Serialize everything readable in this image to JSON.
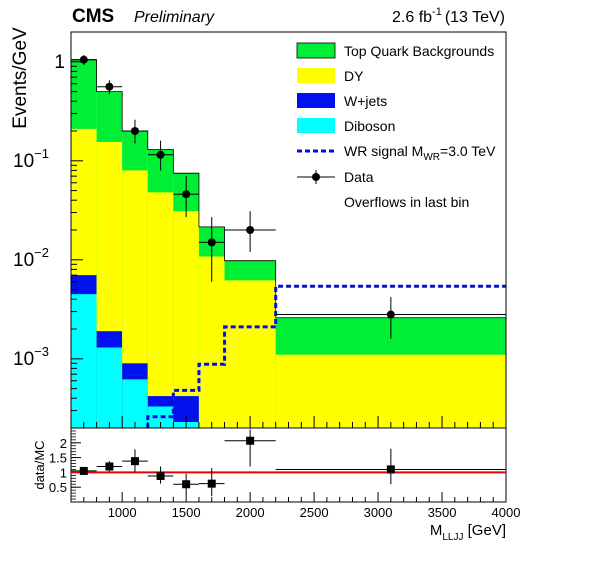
{
  "header": {
    "experiment": "CMS",
    "status": "Preliminary",
    "lumi_value": "2.6 fb",
    "lumi_exp": "-1",
    "energy": "(13 TeV)"
  },
  "legend": {
    "top": "Top Quark Backgrounds",
    "dy": "DY",
    "wjets": "W+jets",
    "diboson": "Diboson",
    "signal_main": "WR signal M",
    "signal_sub": "WR",
    "signal_val": "=3.0 TeV",
    "data": "Data",
    "note": "Overflows in last bin"
  },
  "colors": {
    "top": "#00ee33",
    "dy": "#ffff00",
    "wjets": "#0011ee",
    "diboson": "#00ffff",
    "signal": "#0011dd",
    "ratio_line": "#ee0000"
  },
  "chart_data": [
    {
      "type": "bar",
      "title": "",
      "xlabel_main": "M",
      "xlabel_sub": "LLJJ",
      "xlabel_unit": " [GeV]",
      "ylabel": "Events/GeV",
      "xlim": [
        600,
        4000
      ],
      "ylim": [
        0.0002,
        2
      ],
      "yscale": "log",
      "yticks": [
        {
          "v": 1,
          "base": "1",
          "exp": ""
        },
        {
          "v": 0.1,
          "base": "10",
          "exp": "−1"
        },
        {
          "v": 0.01,
          "base": "10",
          "exp": "−2"
        },
        {
          "v": 0.001,
          "base": "10",
          "exp": "−3"
        }
      ],
      "bins": [
        {
          "lo": 600,
          "hi": 800,
          "diboson": 0.0045,
          "wjets": 0.007,
          "dy": 0.21,
          "total": 1.05
        },
        {
          "lo": 800,
          "hi": 1000,
          "diboson": 0.0013,
          "wjets": 0.0019,
          "dy": 0.155,
          "total": 0.5
        },
        {
          "lo": 1000,
          "hi": 1200,
          "diboson": 0.00062,
          "wjets": 0.0009,
          "dy": 0.08,
          "total": 0.2
        },
        {
          "lo": 1200,
          "hi": 1400,
          "diboson": 0.00033,
          "wjets": 0.00042,
          "dy": 0.048,
          "total": 0.13
        },
        {
          "lo": 1400,
          "hi": 1600,
          "diboson": 0.00023,
          "wjets": 0.00042,
          "dy": 0.031,
          "total": 0.075
        },
        {
          "lo": 1600,
          "hi": 1800,
          "diboson": 0.0,
          "wjets": 0.0,
          "dy": 0.0108,
          "total": 0.0215
        },
        {
          "lo": 1800,
          "hi": 2200,
          "diboson": 0.0,
          "wjets": 0.0,
          "dy": 0.0062,
          "total": 0.0098
        },
        {
          "lo": 2200,
          "hi": 4000,
          "diboson": 0.0,
          "wjets": 0.0,
          "dy": 0.0011,
          "total": 0.0026
        }
      ],
      "signal": [
        {
          "lo": 1200,
          "hi": 1400,
          "v": 0.00026
        },
        {
          "lo": 1400,
          "hi": 1600,
          "v": 0.00048
        },
        {
          "lo": 1600,
          "hi": 1800,
          "v": 0.00088
        },
        {
          "lo": 1800,
          "hi": 2200,
          "v": 0.0021
        },
        {
          "lo": 2200,
          "hi": 4000,
          "v": 0.0054
        }
      ],
      "data_points": [
        {
          "x": 700,
          "xlo": 600,
          "xhi": 800,
          "y": 1.05,
          "ylo": 0.93,
          "yhi": 1.17
        },
        {
          "x": 900,
          "xlo": 800,
          "xhi": 1000,
          "y": 0.56,
          "ylo": 0.47,
          "yhi": 0.65
        },
        {
          "x": 1100,
          "xlo": 1000,
          "xhi": 1200,
          "y": 0.2,
          "ylo": 0.15,
          "yhi": 0.26
        },
        {
          "x": 1300,
          "xlo": 1200,
          "xhi": 1400,
          "y": 0.115,
          "ylo": 0.08,
          "yhi": 0.16
        },
        {
          "x": 1500,
          "xlo": 1400,
          "xhi": 1600,
          "y": 0.046,
          "ylo": 0.027,
          "yhi": 0.07
        },
        {
          "x": 1700,
          "xlo": 1600,
          "xhi": 1800,
          "y": 0.015,
          "ylo": 0.006,
          "yhi": 0.027
        },
        {
          "x": 2000,
          "xlo": 1800,
          "xhi": 2200,
          "y": 0.02,
          "ylo": 0.012,
          "yhi": 0.031
        },
        {
          "x": 3100,
          "xlo": 2200,
          "xhi": 4000,
          "y": 0.0028,
          "ylo": 0.0016,
          "yhi": 0.0042
        }
      ]
    },
    {
      "type": "scatter",
      "title": "",
      "xlabel": "",
      "ylabel": "data/MC",
      "xlim": [
        600,
        4000
      ],
      "ylim": [
        0,
        2.5
      ],
      "xticks": [
        1000,
        1500,
        2000,
        2500,
        3000,
        3500,
        4000
      ],
      "yticks": [
        {
          "v": 0.5,
          "label": "0.5"
        },
        {
          "v": 1,
          "label": "1"
        },
        {
          "v": 1.5,
          "label": "1.5"
        },
        {
          "v": 2,
          "label": "2"
        }
      ],
      "reference_line": 1,
      "points": [
        {
          "x": 700,
          "xlo": 600,
          "xhi": 800,
          "y": 1.05,
          "ylo": 0.95,
          "yhi": 1.15
        },
        {
          "x": 900,
          "xlo": 800,
          "xhi": 1000,
          "y": 1.2,
          "ylo": 1.03,
          "yhi": 1.38
        },
        {
          "x": 1100,
          "xlo": 1000,
          "xhi": 1200,
          "y": 1.38,
          "ylo": 1.0,
          "yhi": 1.78
        },
        {
          "x": 1300,
          "xlo": 1200,
          "xhi": 1400,
          "y": 0.88,
          "ylo": 0.62,
          "yhi": 1.2
        },
        {
          "x": 1500,
          "xlo": 1400,
          "xhi": 1600,
          "y": 0.6,
          "ylo": 0.33,
          "yhi": 0.95
        },
        {
          "x": 1700,
          "xlo": 1600,
          "xhi": 1800,
          "y": 0.62,
          "ylo": 0.2,
          "yhi": 1.15
        },
        {
          "x": 2000,
          "xlo": 1800,
          "xhi": 2200,
          "y": 2.07,
          "ylo": 1.2,
          "yhi": 2.45
        },
        {
          "x": 3100,
          "xlo": 2200,
          "xhi": 4000,
          "y": 1.1,
          "ylo": 0.6,
          "yhi": 1.8
        }
      ]
    }
  ]
}
